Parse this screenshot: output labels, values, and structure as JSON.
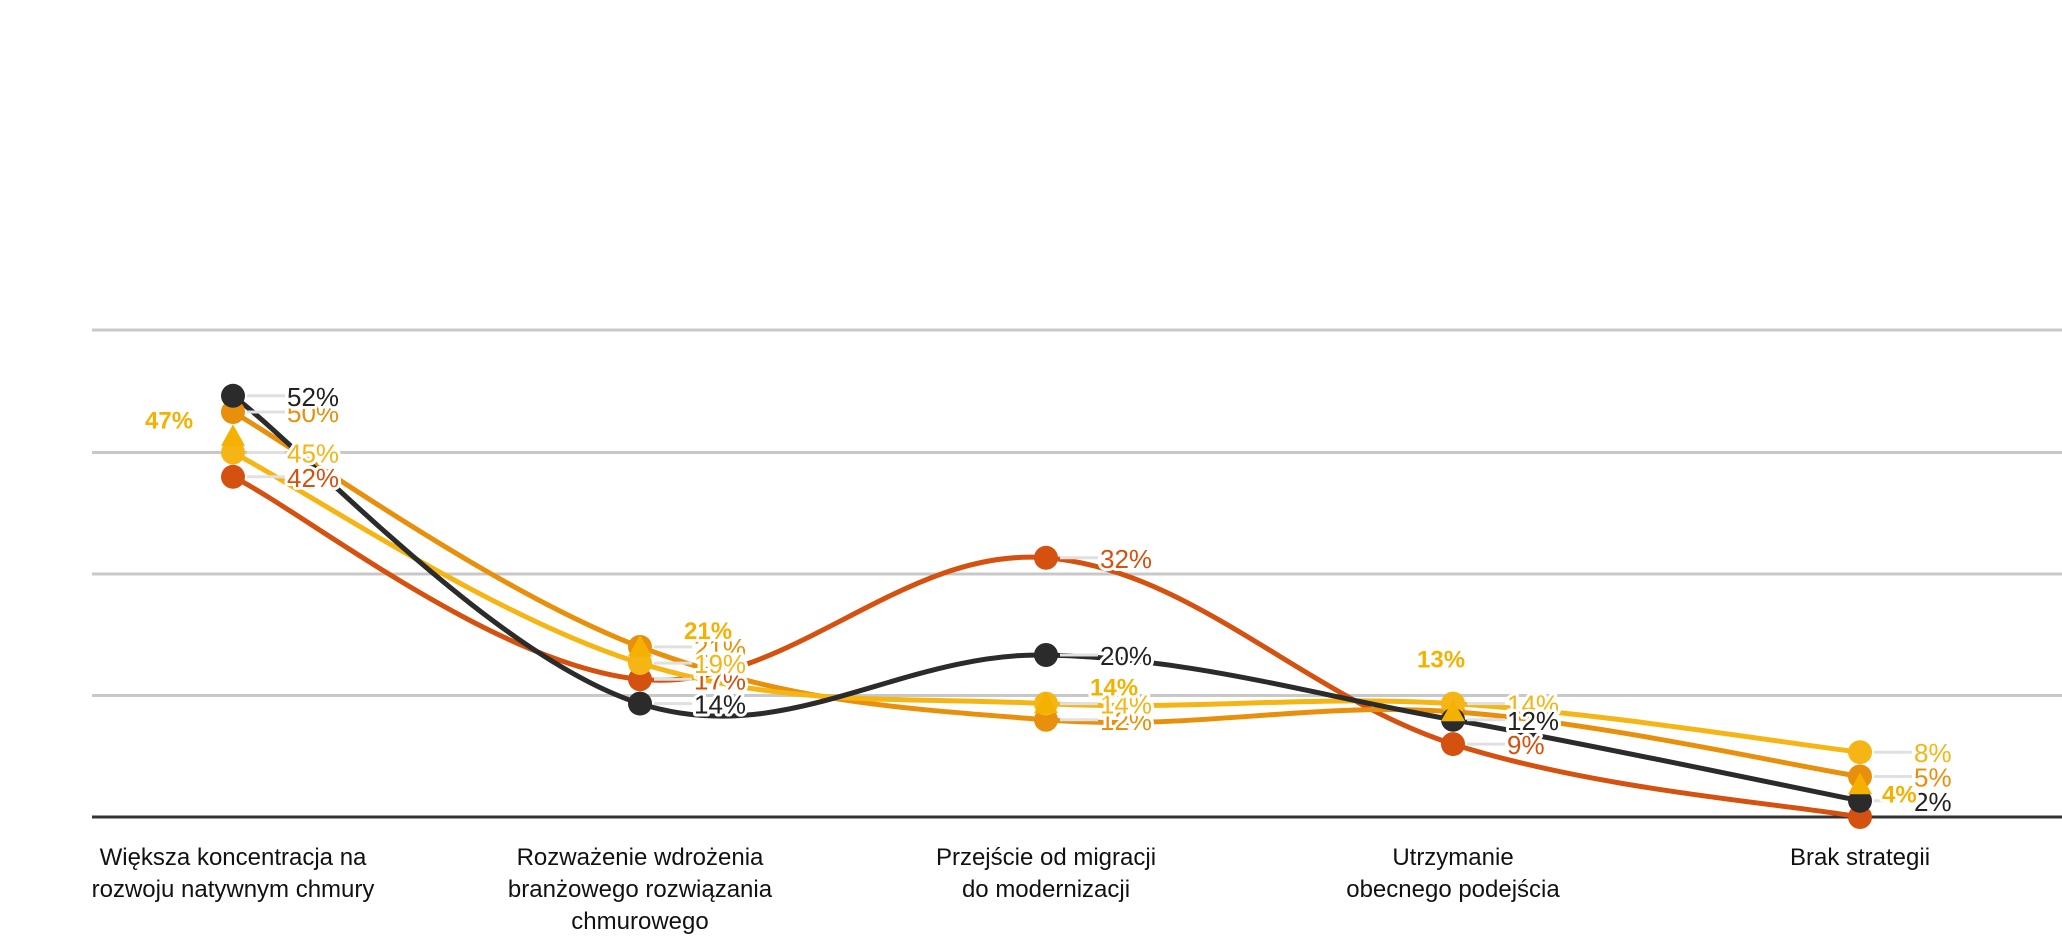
{
  "chart_data": {
    "type": "line",
    "categories": [
      [
        "Większa koncentracja na",
        "rozwoju natywnym chmury"
      ],
      [
        "Rozważenie wdrożenia",
        "branżowego rozwiązania",
        "chmurowego"
      ],
      [
        "Przejście od migracji",
        "do modernizacji"
      ],
      [
        "Utrzymanie",
        "obecnego podejścia"
      ],
      [
        "Brak strategii"
      ]
    ],
    "series": [
      {
        "color": "#2b2b2b",
        "values": [
          52,
          14,
          20,
          12,
          2
        ],
        "labels": [
          "52%",
          "14%",
          "20%",
          "12%",
          "2%"
        ]
      },
      {
        "color": "#e8900c",
        "values": [
          50,
          21,
          12,
          13,
          5
        ],
        "labels": [
          "50%",
          "21%",
          "12%",
          "",
          "5%"
        ]
      },
      {
        "color": "#f5b514",
        "values": [
          45,
          19,
          14,
          14,
          8
        ],
        "labels": [
          "45%",
          "19%",
          "14%",
          "14%",
          "8%"
        ]
      },
      {
        "color": "#d4510f",
        "values": [
          42,
          17,
          32,
          9,
          0
        ],
        "labels": [
          "42%",
          "17%",
          "32%",
          "9%",
          ""
        ]
      }
    ],
    "markers": {
      "color": "#f5b100",
      "values": [
        47,
        21,
        14,
        13,
        4
      ],
      "labels": [
        "47%",
        "21%",
        "14%",
        "13%",
        "4%"
      ]
    },
    "ylim": [
      0,
      60
    ],
    "grid": true,
    "xlabel": "",
    "ylabel": ""
  }
}
